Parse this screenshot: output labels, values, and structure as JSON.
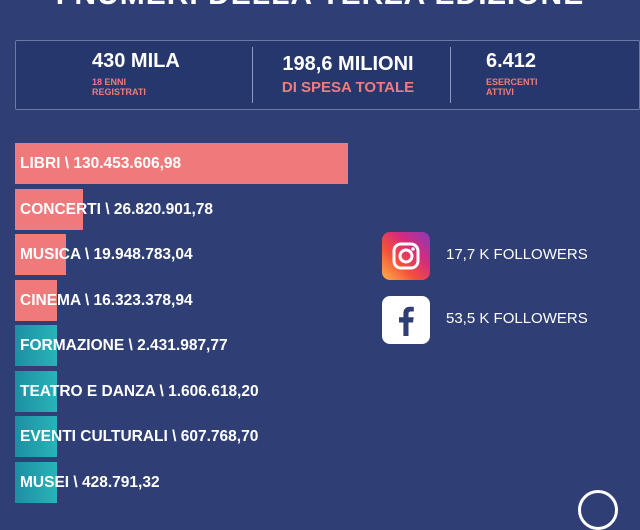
{
  "header": {
    "title": "I NUMERI DELLA TERZA EDIZIONE"
  },
  "stats": [
    {
      "value": "430 MILA",
      "label": "18 ENNI REGISTRATI"
    },
    {
      "value": "198,6 MILIONI",
      "label": "DI SPESA TOTALE"
    },
    {
      "value": "6.412",
      "label": "ESERCENTI ATTIVI"
    }
  ],
  "social": {
    "instagram": {
      "icon": "instagram-icon",
      "text": "17,7 K FOLLOWERS"
    },
    "facebook": {
      "icon": "facebook-icon",
      "text": "53,5 K FOLLOWERS"
    }
  },
  "colors": {
    "background": "#2f3f76",
    "accent": "#ef7a7b",
    "teal": "#28b4b8",
    "panel": "#26376d"
  },
  "chart_data": {
    "type": "bar",
    "orientation": "horizontal",
    "categories": [
      "LIBRI",
      "CONCERTI",
      "MUSICA",
      "CINEMA",
      "FORMAZIONE",
      "TEATRO E DANZA",
      "EVENTI CULTURALI",
      "MUSEI"
    ],
    "values": [
      130453606.98,
      26820901.78,
      19948783.04,
      16323378.94,
      2431987.77,
      1606618.2,
      607768.7,
      428791.32
    ],
    "labels": [
      "LIBRI \\ 130.453.606,98",
      "CONCERTI \\ 26.820.901,78",
      "MUSICA \\ 19.948.783,04",
      "CINEMA \\ 16.323.378,94",
      "FORMAZIONE \\ 2.431.987,77",
      "TEATRO E DANZA \\ 1.606.618,20",
      "EVENTI CULTURALI \\ 607.768,70",
      "MUSEI \\ 428.791,32"
    ],
    "bar_colors": [
      "#ef7a7b",
      "#ef7a7b",
      "#ef7a7b",
      "#ef7a7b",
      "#28b4b8",
      "#28b4b8",
      "#28b4b8",
      "#28b4b8"
    ]
  }
}
